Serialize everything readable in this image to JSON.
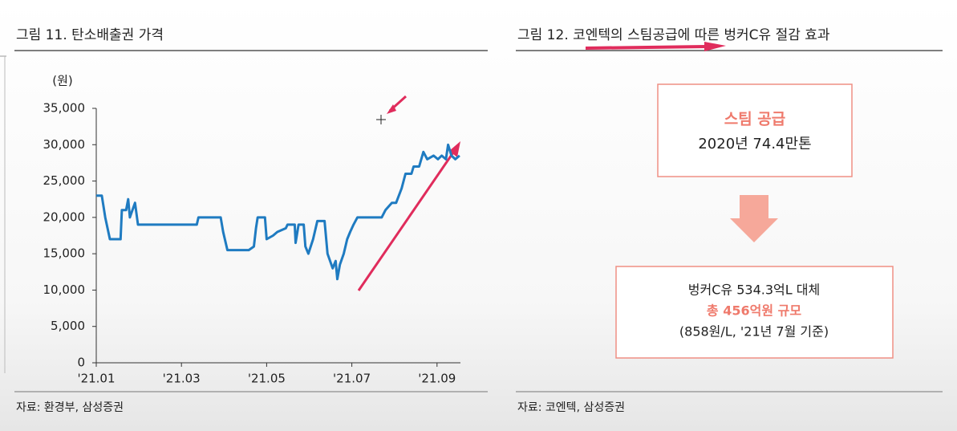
{
  "chart_data": {
    "type": "line",
    "title": "그림 11. 탄소배출권 가격",
    "y_label": "(원)",
    "source": "자료: 환경부, 삼성증권",
    "x": [
      1.0,
      1.13,
      1.21,
      1.32,
      1.57,
      1.6,
      1.7,
      1.75,
      1.79,
      1.91,
      1.98,
      3.36,
      3.4,
      3.92,
      3.98,
      4.08,
      4.58,
      4.7,
      4.75,
      4.79,
      4.96,
      5.0,
      5.15,
      5.25,
      5.45,
      5.49,
      5.66,
      5.68,
      5.75,
      5.87,
      5.91,
      5.98,
      6.09,
      6.19,
      6.36,
      6.43,
      6.55,
      6.62,
      6.66,
      6.72,
      6.81,
      6.89,
      6.96,
      7.04,
      7.13,
      7.7,
      7.79,
      7.94,
      8.04,
      8.17,
      8.26,
      8.4,
      8.45,
      8.58,
      8.68,
      8.77,
      8.92,
      9.02,
      9.11,
      9.21,
      9.26,
      9.34,
      9.43,
      9.53
    ],
    "values": [
      23000,
      23000,
      20000,
      17000,
      17000,
      21000,
      21000,
      22500,
      20000,
      22000,
      19000,
      19000,
      20000,
      20000,
      18000,
      15500,
      15500,
      16000,
      18500,
      20000,
      20000,
      17000,
      17500,
      18000,
      18500,
      19000,
      19000,
      16500,
      19000,
      19000,
      16000,
      15000,
      17000,
      19500,
      19500,
      15000,
      13000,
      14000,
      11500,
      13500,
      15000,
      17000,
      18000,
      19000,
      20000,
      20000,
      21000,
      22000,
      22000,
      24000,
      26000,
      26000,
      27000,
      27000,
      29000,
      28000,
      28500,
      28000,
      28500,
      28000,
      30000,
      28500,
      28000,
      28500
    ],
    "color": "#1f7bc1",
    "xlim": [
      1,
      9.55
    ],
    "xticks": [
      {
        "value": 1,
        "label": "'21.01"
      },
      {
        "value": 3,
        "label": "'21.03"
      },
      {
        "value": 5,
        "label": "'21.05"
      },
      {
        "value": 7,
        "label": "'21.07"
      },
      {
        "value": 9,
        "label": "'21.09"
      }
    ],
    "ylim": [
      0,
      35000
    ],
    "yticks": [
      0,
      {
        "value": 5000,
        "label": "5,000"
      },
      {
        "value": 10000,
        "label": "10,000"
      },
      {
        "value": 15000,
        "label": "15,000"
      },
      {
        "value": 20000,
        "label": "20,000"
      },
      {
        "value": 25000,
        "label": "25,000"
      },
      {
        "value": 30000,
        "label": "30,000"
      },
      {
        "value": 35000,
        "label": "35,000"
      }
    ]
  },
  "diagram": {
    "title": "그림 12. 코엔텍의 스팀공급에 따른 벙커C유 절감 효과",
    "source": "자료: 코엔텍, 삼성증권",
    "box1": {
      "heading": "스팀 공급",
      "text": "2020년 74.4만톤"
    },
    "box2": {
      "line1": "벙커C유 534.3억L 대체",
      "line2": "총 456억원 규모",
      "line3": "(858원/L, '21년 7월 기준)"
    }
  }
}
